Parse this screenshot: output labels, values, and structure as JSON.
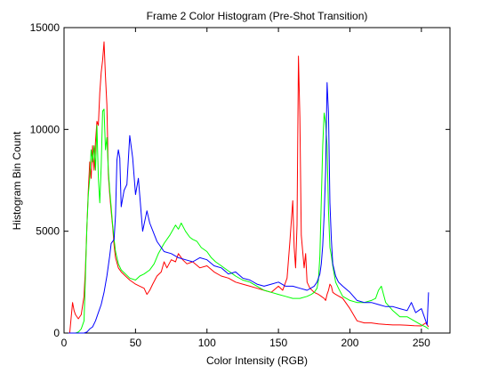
{
  "chart_data": {
    "type": "line",
    "title": "Frame 2 Color Histogram (Pre-Shot Transition)",
    "xlabel": "Color Intensity (RGB)",
    "ylabel": "Histogram Bin Count",
    "xlim": [
      0,
      270
    ],
    "ylim": [
      0,
      15000
    ],
    "xticks": [
      0,
      50,
      100,
      150,
      200,
      250
    ],
    "yticks": [
      0,
      5000,
      10000,
      15000
    ],
    "grid": false,
    "legend": "none",
    "colors": {
      "red": "#ff0000",
      "green": "#00ff00",
      "blue": "#0000ff"
    },
    "series": [
      {
        "color": "red",
        "x": [
          0,
          4,
          6,
          7,
          8,
          10,
          12,
          14,
          15,
          16,
          17,
          18,
          19,
          20,
          21,
          22,
          23,
          24,
          25,
          26,
          27,
          28,
          29,
          30,
          31,
          32,
          33,
          34,
          35,
          36,
          38,
          40,
          43,
          46,
          50,
          53,
          56,
          58,
          60,
          62,
          65,
          68,
          70,
          72,
          75,
          78,
          80,
          83,
          86,
          90,
          95,
          100,
          105,
          110,
          115,
          120,
          125,
          130,
          135,
          140,
          145,
          150,
          153,
          156,
          158,
          160,
          161,
          162,
          163,
          164,
          165,
          166,
          167,
          168,
          169,
          170,
          172,
          175,
          178,
          180,
          182,
          183,
          184,
          185,
          186,
          187,
          188,
          190,
          195,
          200,
          205,
          210,
          215,
          220,
          225,
          230,
          235,
          240,
          245,
          250,
          253,
          255
        ],
        "y": [
          0,
          0,
          1500,
          1100,
          900,
          700,
          900,
          1800,
          3200,
          5200,
          7000,
          8400,
          7600,
          9200,
          8000,
          9400,
          10400,
          10200,
          11800,
          12800,
          13400,
          14300,
          12600,
          11200,
          7800,
          6800,
          6000,
          5200,
          4300,
          3700,
          3200,
          3000,
          2800,
          2600,
          2400,
          2300,
          2200,
          1900,
          2100,
          2400,
          2800,
          3000,
          3500,
          3200,
          3600,
          3500,
          3900,
          3600,
          3400,
          3500,
          3200,
          3300,
          3000,
          2800,
          2700,
          2500,
          2400,
          2300,
          2200,
          2100,
          2000,
          2300,
          2100,
          2700,
          4500,
          6500,
          4200,
          3200,
          5300,
          13600,
          10600,
          4800,
          4000,
          3200,
          3900,
          2500,
          2200,
          2000,
          1900,
          1800,
          1700,
          1600,
          1900,
          2100,
          2400,
          2300,
          2000,
          1900,
          1700,
          1200,
          600,
          500,
          500,
          450,
          420,
          400,
          400,
          380,
          360,
          350,
          500,
          300
        ]
      },
      {
        "color": "green",
        "x": [
          0,
          5,
          8,
          10,
          12,
          14,
          15,
          16,
          17,
          18,
          19,
          20,
          21,
          22,
          23,
          24,
          25,
          26,
          27,
          28,
          29,
          30,
          31,
          32,
          33,
          34,
          35,
          36,
          38,
          40,
          43,
          46,
          50,
          53,
          56,
          60,
          63,
          66,
          70,
          74,
          78,
          80,
          82,
          85,
          88,
          90,
          93,
          96,
          100,
          103,
          106,
          110,
          114,
          118,
          120,
          125,
          130,
          135,
          140,
          145,
          150,
          155,
          160,
          165,
          170,
          173,
          175,
          177,
          178,
          179,
          180,
          181,
          182,
          183,
          184,
          185,
          186,
          187,
          188,
          190,
          192,
          195,
          200,
          205,
          210,
          215,
          218,
          220,
          222,
          225,
          230,
          235,
          240,
          245,
          250,
          253,
          255
        ],
        "y": [
          0,
          0,
          0,
          50,
          200,
          600,
          2800,
          5200,
          6800,
          7600,
          9000,
          8400,
          9200,
          8000,
          10200,
          7600,
          6400,
          8200,
          10900,
          11000,
          9000,
          9600,
          8000,
          7000,
          6200,
          5300,
          4600,
          4000,
          3400,
          3100,
          2900,
          2700,
          2600,
          2800,
          2900,
          3100,
          3400,
          3900,
          4400,
          4800,
          5300,
          5100,
          5400,
          5000,
          4700,
          4600,
          4500,
          4200,
          4000,
          3700,
          3500,
          3300,
          3100,
          2900,
          2800,
          2600,
          2500,
          2300,
          2100,
          2000,
          1900,
          1800,
          1700,
          1700,
          1800,
          1900,
          2000,
          2200,
          2600,
          3800,
          6500,
          9200,
          10800,
          10300,
          9200,
          6000,
          4200,
          3800,
          3300,
          2500,
          2200,
          1800,
          1600,
          1500,
          1500,
          1600,
          1700,
          2100,
          2300,
          1500,
          1100,
          800,
          800,
          600,
          400,
          300,
          200
        ]
      },
      {
        "color": "blue",
        "x": [
          0,
          10,
          14,
          16,
          18,
          20,
          22,
          24,
          26,
          28,
          30,
          32,
          33,
          34,
          35,
          36,
          37,
          38,
          39,
          40,
          42,
          44,
          46,
          48,
          50,
          52,
          55,
          58,
          60,
          65,
          70,
          75,
          80,
          85,
          90,
          95,
          100,
          105,
          110,
          115,
          120,
          125,
          130,
          135,
          140,
          145,
          150,
          155,
          160,
          165,
          170,
          175,
          177,
          179,
          180,
          181,
          182,
          183,
          184,
          185,
          186,
          187,
          188,
          189,
          190,
          192,
          195,
          200,
          205,
          210,
          215,
          220,
          225,
          230,
          235,
          240,
          243,
          246,
          248,
          250,
          252,
          254,
          255
        ],
        "y": [
          0,
          0,
          0,
          50,
          200,
          300,
          600,
          1000,
          1400,
          2000,
          2800,
          3800,
          4400,
          4500,
          4600,
          5800,
          8500,
          9000,
          8600,
          6200,
          7000,
          7300,
          9700,
          8600,
          6800,
          7600,
          5000,
          6000,
          5400,
          4500,
          4000,
          3900,
          3700,
          3600,
          3500,
          3700,
          3600,
          3300,
          3200,
          2900,
          3000,
          2700,
          2600,
          2400,
          2300,
          2400,
          2500,
          2300,
          2300,
          2200,
          2100,
          2300,
          2500,
          2900,
          3400,
          4300,
          5800,
          8000,
          12300,
          10800,
          6400,
          4600,
          3400,
          3100,
          2800,
          2500,
          2300,
          2000,
          1600,
          1500,
          1500,
          1400,
          1300,
          1300,
          1200,
          1100,
          1500,
          1000,
          1100,
          1200,
          800,
          400,
          2000
        ]
      }
    ]
  }
}
